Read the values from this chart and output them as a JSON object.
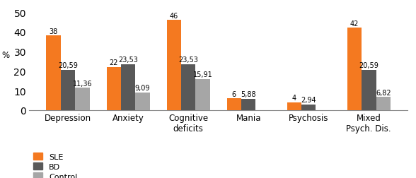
{
  "categories": [
    "Depression",
    "Anxiety",
    "Cognitive\ndeficits",
    "Mania",
    "Psychosis",
    "Mixed\nPsych. Dis."
  ],
  "sle_values": [
    38,
    22,
    46,
    6,
    4,
    42
  ],
  "bd_values": [
    20.59,
    23.53,
    23.53,
    5.88,
    2.94,
    20.59
  ],
  "control_values": [
    11.36,
    9.09,
    15.91,
    0,
    0,
    6.82
  ],
  "sle_labels": [
    "38",
    "22",
    "46",
    "6",
    "4",
    "42"
  ],
  "bd_labels": [
    "20,59",
    "23,53",
    "23,53",
    "5,88",
    "2,94",
    "20,59"
  ],
  "control_labels": [
    "11,36",
    "9,09",
    "15,91",
    "",
    "",
    "6,82"
  ],
  "sle_color": "#f47920",
  "bd_color": "#595959",
  "control_color": "#a6a6a6",
  "ylabel": "%",
  "ylim": [
    0,
    52
  ],
  "yticks": [
    0,
    10,
    20,
    30,
    40,
    50
  ],
  "legend_labels": [
    "SLE",
    "BD",
    "Control"
  ],
  "bar_width": 0.24,
  "background_color": "#ffffff",
  "label_fontsize": 7,
  "axis_label_fontsize": 8.5,
  "legend_fontsize": 8
}
